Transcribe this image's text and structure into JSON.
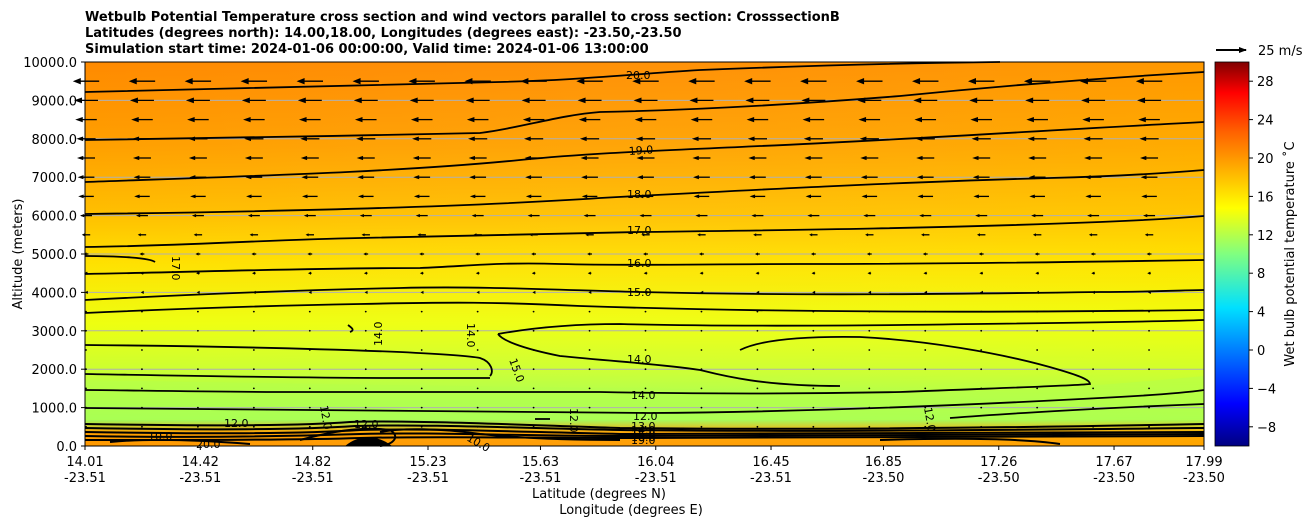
{
  "chart_data": {
    "type": "cross-section contour with wind vectors",
    "title_lines": [
      "Wetbulb Potential Temperature cross section and wind vectors parallel to cross section: CrosssectionB",
      "Latitudes (degrees north): 14.00,18.00, Longitudes (degrees east): -23.50,-23.50",
      "Simulation start time: 2024-01-06 00:00:00, Valid time: 2024-01-06 13:00:00"
    ],
    "ylabel": "Altitude (meters)",
    "xlabel_lat": "Latitude (degrees N)",
    "xlabel_lon": "Longitude (degrees E)",
    "ylim": [
      0,
      10000
    ],
    "y_ticks": [
      "0.0",
      "1000.0",
      "2000.0",
      "3000.0",
      "4000.0",
      "5000.0",
      "6000.0",
      "7000.0",
      "8000.0",
      "9000.0",
      "10000.0"
    ],
    "x_ticks_lat": [
      "14.01",
      "14.42",
      "14.82",
      "15.23",
      "15.63",
      "16.04",
      "16.45",
      "16.85",
      "17.26",
      "17.67",
      "17.99"
    ],
    "x_ticks_lon": [
      "-23.51",
      "-23.51",
      "-23.51",
      "-23.51",
      "-23.51",
      "-23.51",
      "-23.51",
      "-23.50",
      "-23.50",
      "-23.50",
      "-23.50"
    ],
    "grid": "horizontal gridlines",
    "colorbar": {
      "label": "Wet bulb potential temperature ˚C",
      "range": [
        -10,
        30
      ],
      "ticks": [
        "−8",
        "−4",
        "0",
        "4",
        "8",
        "12",
        "16",
        "20",
        "24",
        "28"
      ],
      "colormap": "jet"
    },
    "quiver_key": {
      "label": "25 m/s"
    },
    "contour_labels": [
      "20.0",
      "19.0",
      "18.0",
      "17.0",
      "16.0",
      "15.0",
      "14.0",
      "14.0",
      "12.0",
      "12.0",
      "17.0",
      "14.0",
      "14.0",
      "15.0",
      "12.0",
      "20.0",
      "12.0",
      "12.0",
      "10.0",
      "10.0",
      "13.0",
      "14.0",
      "15.0",
      "16.0",
      "17.0",
      "18.0",
      "19.0",
      "20.0",
      "12.0"
    ],
    "wind_rows": [
      {
        "altitude": 9500,
        "u": -22
      },
      {
        "altitude": 9000,
        "u": -20
      },
      {
        "altitude": 8500,
        "u": -18
      },
      {
        "altitude": 8000,
        "u": -16
      },
      {
        "altitude": 7500,
        "u": -15
      },
      {
        "altitude": 7000,
        "u": -14
      },
      {
        "altitude": 6500,
        "u": -13
      },
      {
        "altitude": 6000,
        "u": -10
      },
      {
        "altitude": 5500,
        "u": -7
      },
      {
        "altitude": 5000,
        "u": -4
      },
      {
        "altitude": 4500,
        "u": -3
      },
      {
        "altitude": 4000,
        "u": -2
      },
      {
        "altitude": 3500,
        "u": -1
      },
      {
        "altitude": 3000,
        "u": -1
      },
      {
        "altitude": 2500,
        "u": -1
      },
      {
        "altitude": 2000,
        "u": -0.5
      },
      {
        "altitude": 1500,
        "u": -0.5
      },
      {
        "altitude": 1000,
        "u": -0.5
      },
      {
        "altitude": 500,
        "u": -0.5
      }
    ]
  }
}
